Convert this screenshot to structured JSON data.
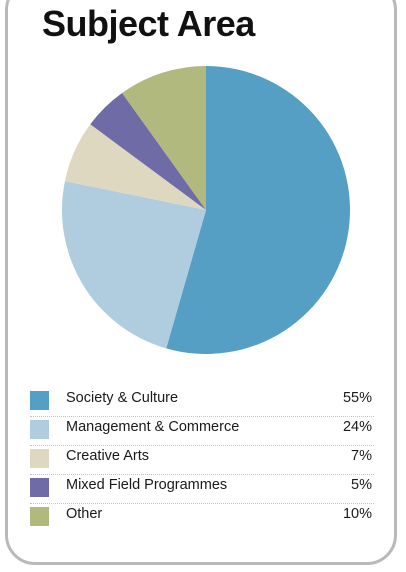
{
  "title": "Subject Area",
  "chart_data": {
    "type": "pie",
    "categories": [
      "Society & Culture",
      "Management & Commerce",
      "Creative Arts",
      "Mixed Field Programmes",
      "Other"
    ],
    "values": [
      55,
      24,
      7,
      5,
      10
    ],
    "value_labels": [
      "55%",
      "24%",
      "7%",
      "5%",
      "10%"
    ],
    "colors": [
      "#549fc3",
      "#b0cde0",
      "#ddd8bf",
      "#6f6ba6",
      "#b1b97f"
    ],
    "legend_placement": "bottom"
  }
}
